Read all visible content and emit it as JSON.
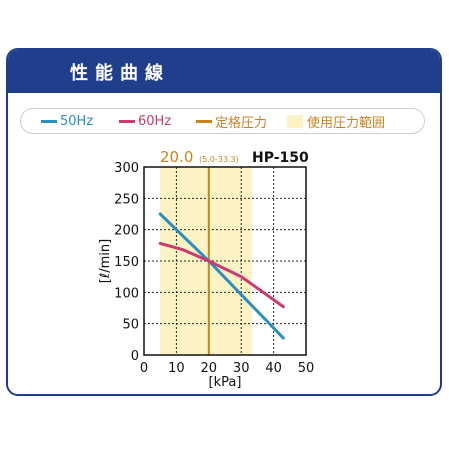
{
  "panel": {
    "title": "性能曲線"
  },
  "legend": {
    "items": [
      {
        "label": "50Hz",
        "color": "#2a8fc0",
        "kind": "line"
      },
      {
        "label": "60Hz",
        "color": "#c93a73",
        "kind": "line"
      },
      {
        "label": "定格圧力",
        "color": "#c98420",
        "kind": "line"
      },
      {
        "label": "使用圧力範囲",
        "color": "#c98420",
        "kind": "box"
      }
    ]
  },
  "chart_data": {
    "type": "line",
    "model": "HP-150",
    "xlabel": "[kPa]",
    "ylabel": "[ℓ/min]",
    "xlim": [
      0,
      50
    ],
    "ylim": [
      0,
      300
    ],
    "xticks": [
      0,
      10,
      20,
      30,
      40,
      50
    ],
    "yticks": [
      0,
      50,
      100,
      150,
      200,
      250,
      300
    ],
    "grid": true,
    "rated_pressure": {
      "value": 20.0,
      "label": "20.0",
      "range_label": "(5.0-33.3)",
      "color": "#c98420"
    },
    "operating_range": {
      "min": 5.0,
      "max": 33.3,
      "color": "#fcf3c4"
    },
    "series": [
      {
        "name": "50Hz",
        "color": "#2a8fc0",
        "points": [
          [
            5,
            225
          ],
          [
            20,
            150
          ],
          [
            43,
            27
          ]
        ]
      },
      {
        "name": "60Hz",
        "color": "#c93a73",
        "points": [
          [
            5,
            178
          ],
          [
            12,
            168
          ],
          [
            20,
            150
          ],
          [
            30,
            125
          ],
          [
            36,
            103
          ],
          [
            43,
            77
          ]
        ]
      }
    ]
  }
}
